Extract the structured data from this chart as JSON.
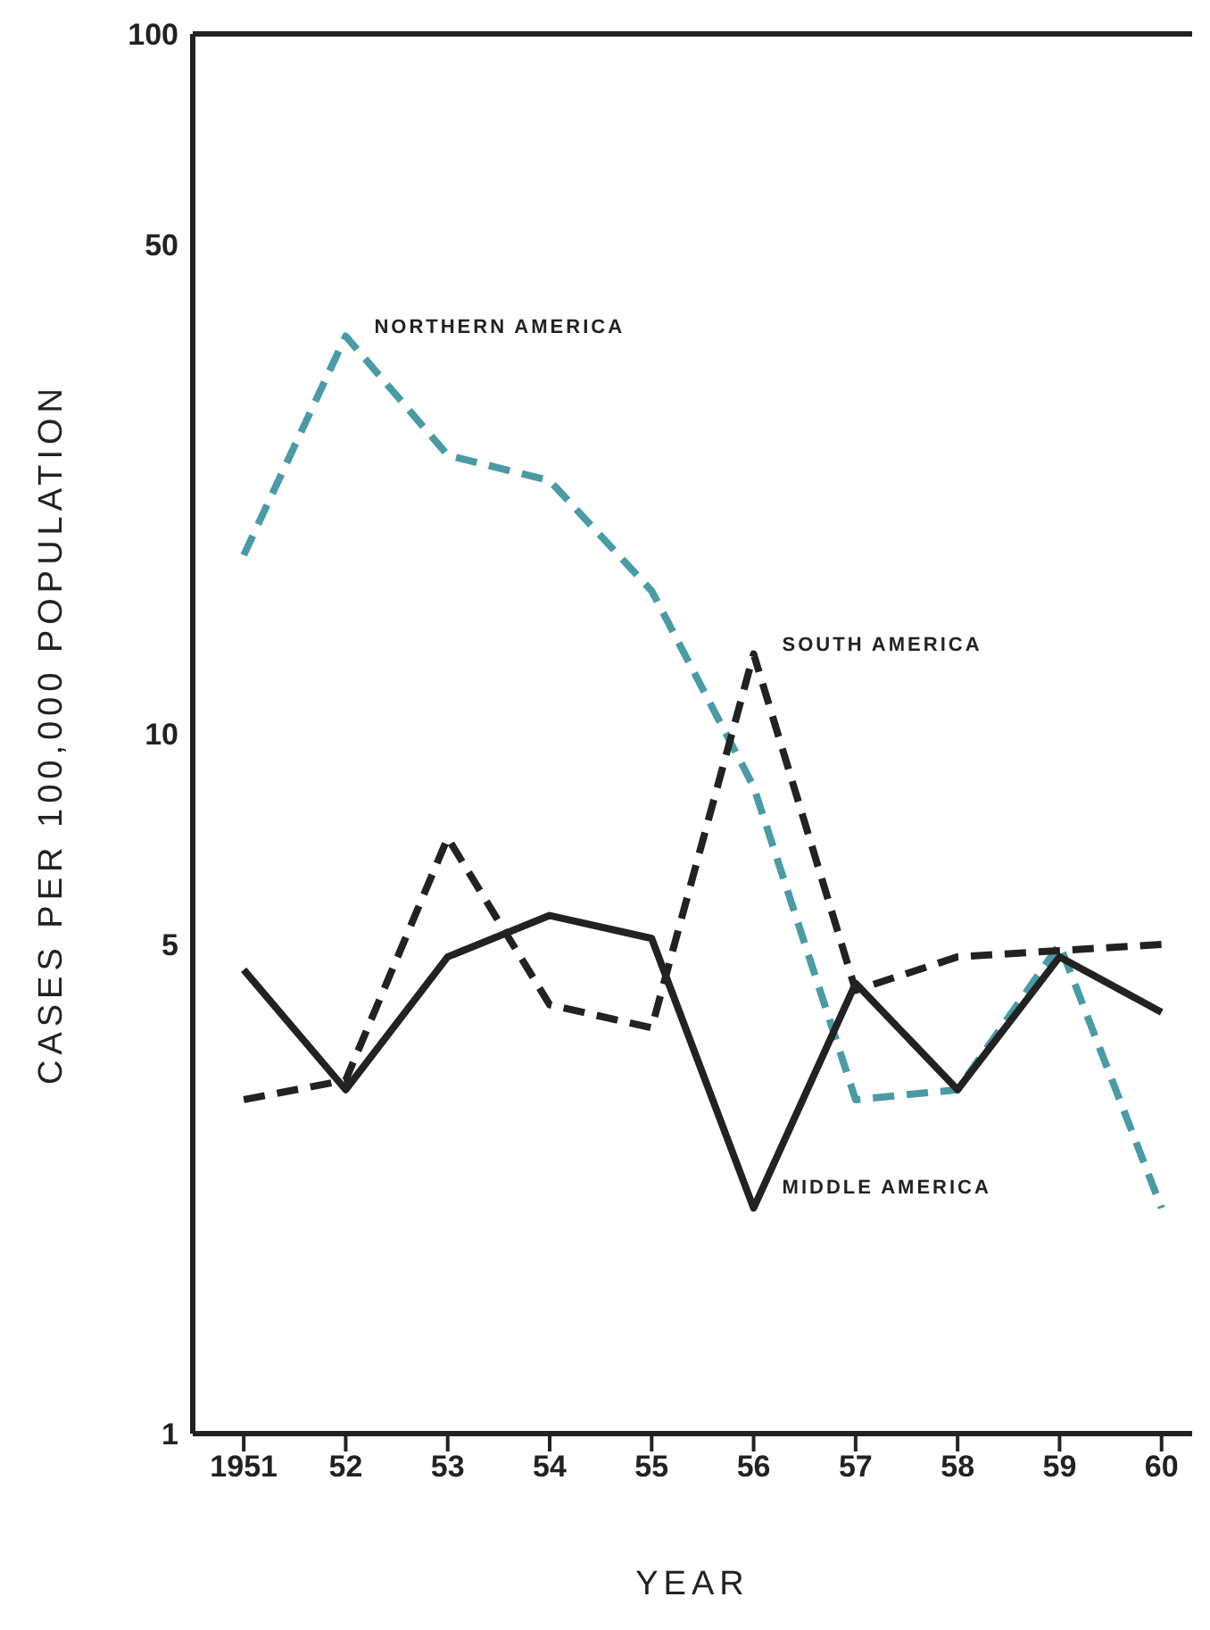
{
  "chart_data": {
    "type": "line",
    "xlabel": "YEAR",
    "ylabel": "CASES PER 100,000 POPULATION",
    "x": [
      1951,
      1952,
      1953,
      1954,
      1955,
      1956,
      1957,
      1958,
      1959,
      1960
    ],
    "series": [
      {
        "name": "NORTHERN AMERICA",
        "color": "#4a9ba5",
        "line_style": "dashed",
        "values": [
          18,
          37,
          25,
          23,
          16,
          8.4,
          3.0,
          3.1,
          5.0,
          2.1
        ]
      },
      {
        "name": "SOUTH AMERICA",
        "color": "#222222",
        "line_style": "dashed",
        "values": [
          3.0,
          3.2,
          7.1,
          4.1,
          3.8,
          13,
          4.3,
          4.8,
          4.9,
          5.0
        ]
      },
      {
        "name": "MIDDLE AMERICA",
        "color": "#222222",
        "line_style": "solid",
        "values": [
          4.6,
          3.1,
          4.8,
          5.5,
          5.1,
          2.1,
          4.4,
          3.1,
          4.8,
          4.0
        ]
      }
    ],
    "log": true,
    "ylim": [
      1,
      100
    ],
    "yticks": [
      1,
      5,
      10,
      50,
      100
    ],
    "xlim": [
      1950.5,
      1960.3
    ],
    "xticks": [
      {
        "value": 1951,
        "label": "1951"
      },
      {
        "value": 1952,
        "label": "52"
      },
      {
        "value": 1953,
        "label": "53"
      },
      {
        "value": 1954,
        "label": "54"
      },
      {
        "value": 1955,
        "label": "55"
      },
      {
        "value": 1956,
        "label": "56"
      },
      {
        "value": 1957,
        "label": "57"
      },
      {
        "value": 1958,
        "label": "58"
      },
      {
        "value": 1959,
        "label": "59"
      },
      {
        "value": 1960,
        "label": "60"
      }
    ],
    "grid": false,
    "legend": false,
    "marker": "none"
  }
}
